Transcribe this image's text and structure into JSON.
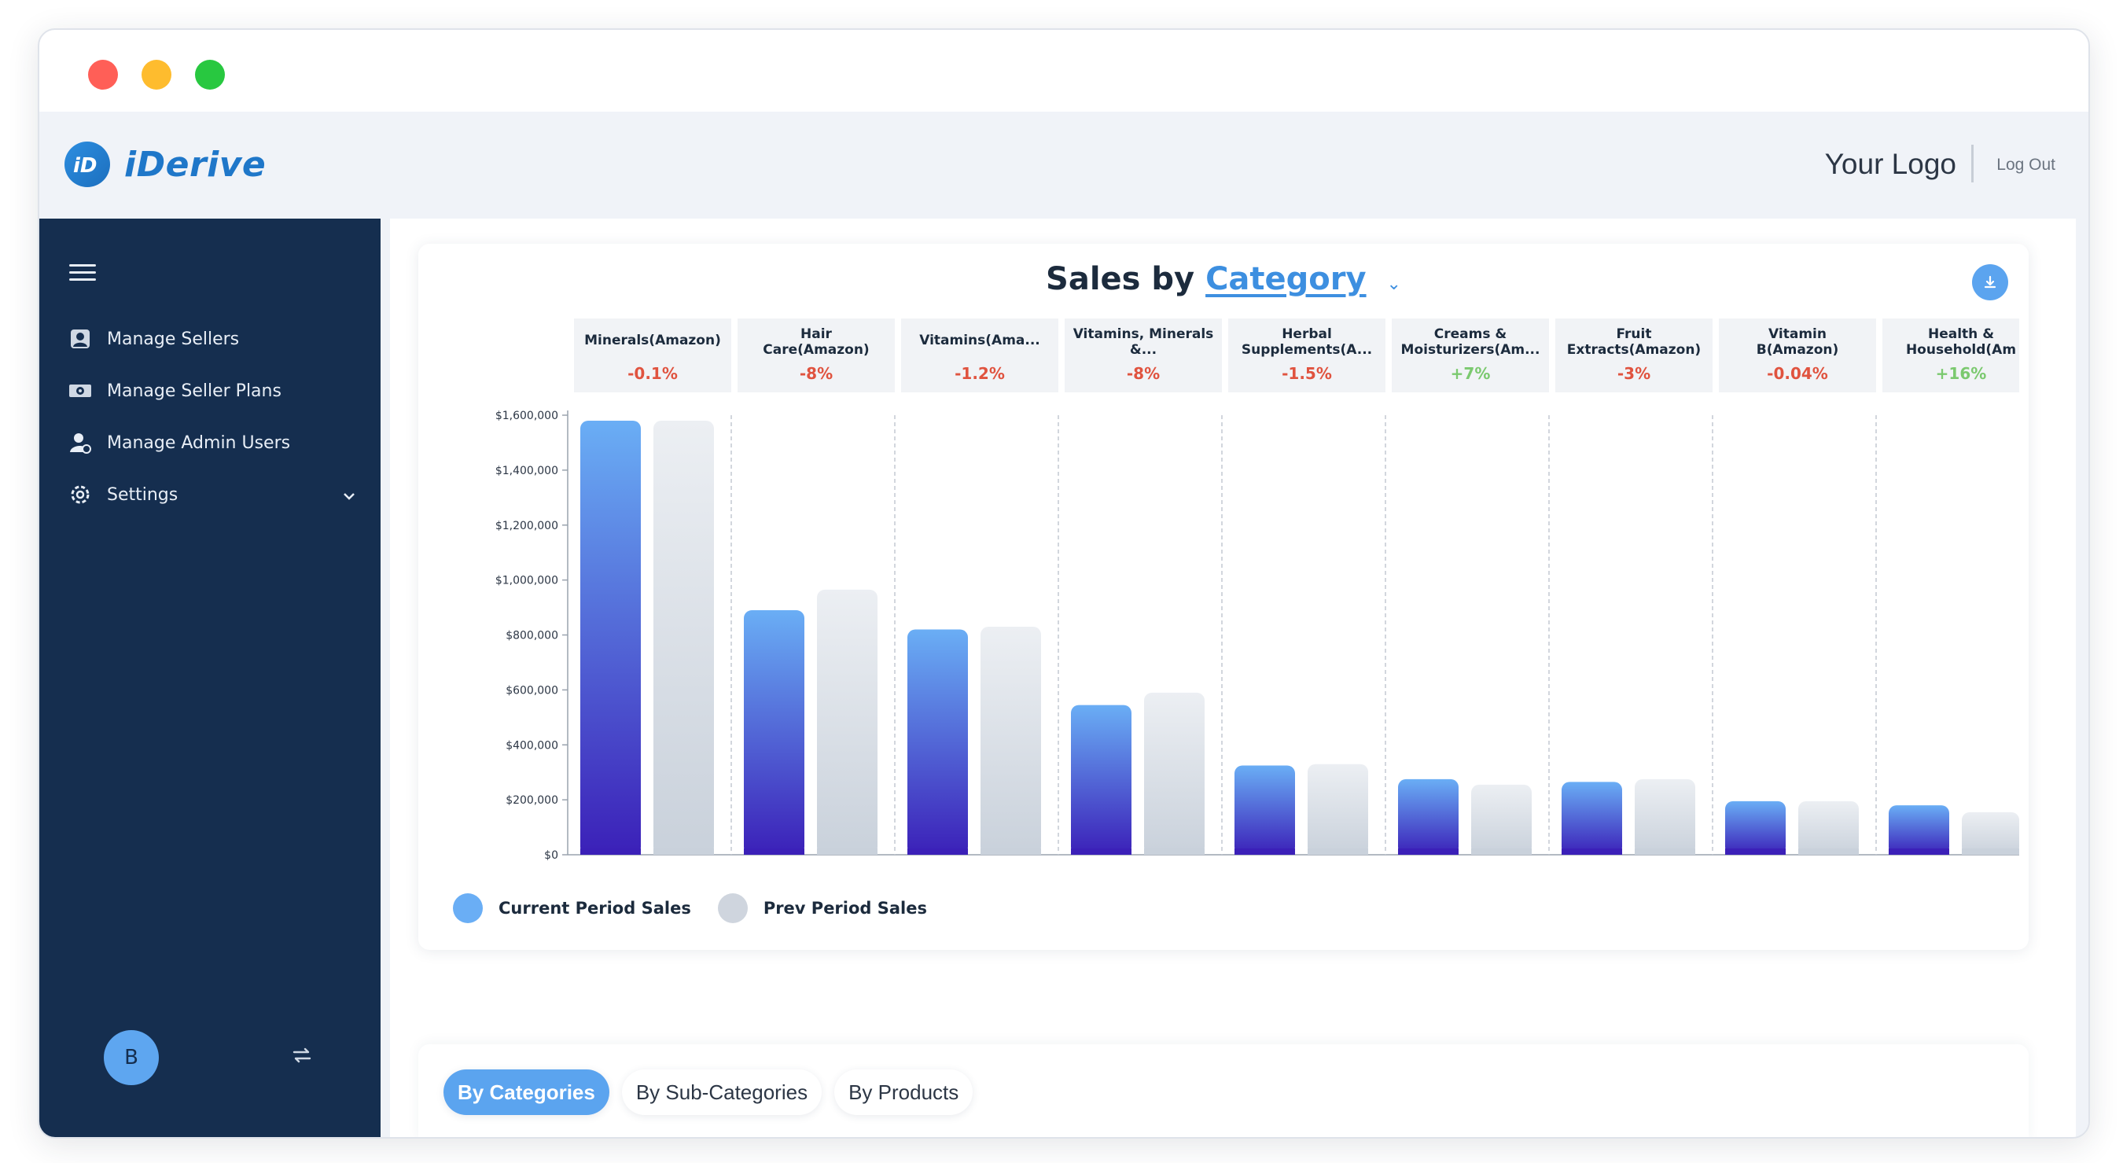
{
  "brand": {
    "name": "iDerive",
    "logo_letter": "iD"
  },
  "header": {
    "your_logo": "Your Logo",
    "logout": "Log Out"
  },
  "sidebar": {
    "items": [
      {
        "label": "Manage Sellers",
        "icon": "user-icon"
      },
      {
        "label": "Manage Seller Plans",
        "icon": "money-icon"
      },
      {
        "label": "Manage Admin Users",
        "icon": "admin-user-icon"
      },
      {
        "label": "Settings",
        "icon": "gear-icon"
      }
    ],
    "avatar_initial": "B"
  },
  "card": {
    "title_prefix": "Sales by",
    "title_link": "Category",
    "legend": {
      "current": "Current Period Sales",
      "prev": "Prev Period Sales"
    }
  },
  "colors": {
    "current_top": "#6aaef5",
    "current_bottom": "#3b20b8",
    "prev_top": "#eceff3",
    "prev_bottom": "#c9d1db",
    "negative": "#e0533f",
    "positive": "#7bc96f",
    "sidebar": "#152e4f"
  },
  "chart_data": {
    "type": "bar",
    "categories": [
      [
        "Minerals(Amazon)"
      ],
      [
        "Hair",
        "Care(Amazon)"
      ],
      [
        "Vitamins(Ama..."
      ],
      [
        "Vitamins, Minerals",
        "&..."
      ],
      [
        "Herbal",
        "Supplements(A..."
      ],
      [
        "Creams &",
        "Moisturizers(Am..."
      ],
      [
        "Fruit",
        "Extracts(Amazon)"
      ],
      [
        "Vitamin",
        "B(Amazon)"
      ],
      [
        "Health &",
        "Household(Am"
      ]
    ],
    "changes": [
      "-0.1%",
      "-8%",
      "-1.2%",
      "-8%",
      "-1.5%",
      "+7%",
      "-3%",
      "-0.04%",
      "+16%"
    ],
    "series": [
      {
        "name": "Current Period Sales",
        "values": [
          1580000,
          890000,
          820000,
          545000,
          325000,
          275000,
          265000,
          195000,
          180000
        ]
      },
      {
        "name": "Prev Period Sales",
        "values": [
          1580000,
          965000,
          830000,
          590000,
          330000,
          255000,
          275000,
          195000,
          155000
        ]
      }
    ],
    "yticks": [
      "$0",
      "$200,000",
      "$400,000",
      "$600,000",
      "$800,000",
      "$1,000,000",
      "$1,200,000",
      "$1,400,000",
      "$1,600,000"
    ],
    "ylim": [
      0,
      1600000
    ],
    "grid": "vertical dashed separators",
    "legend_position": "bottom-left"
  },
  "tabs": [
    "By Categories",
    "By Sub-Categories",
    "By Products"
  ],
  "active_tab": "By Categories"
}
